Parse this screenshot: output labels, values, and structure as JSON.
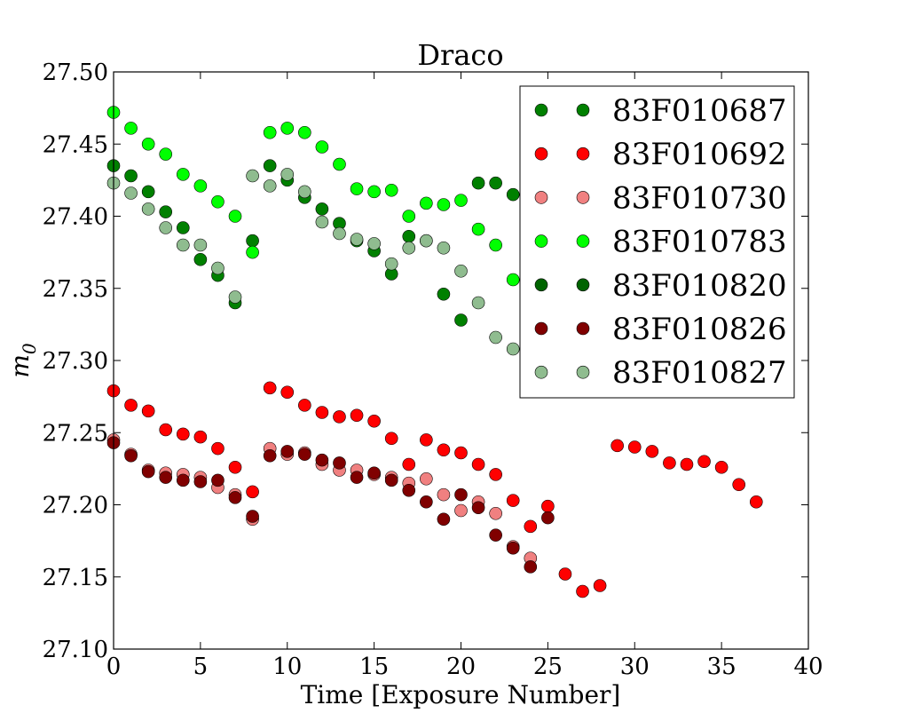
{
  "chart_data": {
    "type": "scatter",
    "title": "Draco",
    "xlabel": "Time [Exposure Number]",
    "ylabel_base": "m",
    "ylabel_sub": "0",
    "xlim": [
      0,
      40
    ],
    "ylim": [
      27.1,
      27.5
    ],
    "xticks": [
      0,
      5,
      10,
      15,
      20,
      25,
      30,
      35,
      40
    ],
    "xtick_labels": [
      "0",
      "5",
      "10",
      "15",
      "20",
      "25",
      "30",
      "35",
      "40"
    ],
    "yticks": [
      27.1,
      27.15,
      27.2,
      27.25,
      27.3,
      27.35,
      27.4,
      27.45,
      27.5
    ],
    "ytick_labels": [
      "27.10",
      "27.15",
      "27.20",
      "27.25",
      "27.30",
      "27.35",
      "27.40",
      "27.45",
      "27.50"
    ],
    "grid": false,
    "legend_position": "top-right",
    "series": [
      {
        "name": "83F010687",
        "color": "#008000",
        "points": [
          [
            0,
            27.435
          ],
          [
            1,
            27.428
          ],
          [
            2,
            27.417
          ],
          [
            3,
            27.403
          ],
          [
            4,
            27.392
          ],
          [
            5,
            27.37
          ],
          [
            6,
            27.359
          ],
          [
            7,
            27.34
          ],
          [
            8,
            27.383
          ],
          [
            9,
            27.435
          ],
          [
            10,
            27.425
          ],
          [
            11,
            27.413
          ],
          [
            12,
            27.405
          ],
          [
            13,
            27.395
          ],
          [
            14,
            27.383
          ],
          [
            15,
            27.376
          ],
          [
            16,
            27.36
          ],
          [
            17,
            27.386
          ],
          [
            18,
            27.383
          ],
          [
            19,
            27.346
          ],
          [
            20,
            27.328
          ],
          [
            21,
            27.423
          ],
          [
            22,
            27.423
          ],
          [
            23,
            27.415
          ]
        ]
      },
      {
        "name": "83F010692",
        "color": "#ff0000",
        "points": [
          [
            0,
            27.279
          ],
          [
            1,
            27.269
          ],
          [
            2,
            27.265
          ],
          [
            3,
            27.252
          ],
          [
            4,
            27.249
          ],
          [
            5,
            27.247
          ],
          [
            6,
            27.239
          ],
          [
            7,
            27.226
          ],
          [
            8,
            27.209
          ],
          [
            9,
            27.281
          ],
          [
            10,
            27.278
          ],
          [
            11,
            27.269
          ],
          [
            12,
            27.264
          ],
          [
            13,
            27.261
          ],
          [
            14,
            27.262
          ],
          [
            15,
            27.258
          ],
          [
            16,
            27.246
          ],
          [
            17,
            27.228
          ],
          [
            18,
            27.245
          ],
          [
            19,
            27.238
          ],
          [
            20,
            27.236
          ],
          [
            21,
            27.228
          ],
          [
            22,
            27.221
          ],
          [
            23,
            27.203
          ],
          [
            24,
            27.185
          ],
          [
            25,
            27.199
          ],
          [
            26,
            27.152
          ],
          [
            27,
            27.14
          ],
          [
            28,
            27.144
          ],
          [
            29,
            27.241
          ],
          [
            30,
            27.24
          ],
          [
            31,
            27.237
          ],
          [
            32,
            27.229
          ],
          [
            33,
            27.228
          ],
          [
            34,
            27.23
          ],
          [
            35,
            27.226
          ],
          [
            36,
            27.214
          ],
          [
            37,
            27.202
          ]
        ]
      },
      {
        "name": "83F010730",
        "color": "#f08080",
        "points": [
          [
            0,
            27.245
          ],
          [
            1,
            27.235
          ],
          [
            2,
            27.224
          ],
          [
            3,
            27.222
          ],
          [
            4,
            27.221
          ],
          [
            5,
            27.219
          ],
          [
            6,
            27.212
          ],
          [
            7,
            27.207
          ],
          [
            8,
            27.19
          ],
          [
            9,
            27.239
          ],
          [
            10,
            27.235
          ],
          [
            11,
            27.236
          ],
          [
            12,
            27.228
          ],
          [
            13,
            27.224
          ],
          [
            14,
            27.224
          ],
          [
            15,
            27.221
          ],
          [
            16,
            27.219
          ],
          [
            17,
            27.215
          ],
          [
            18,
            27.218
          ],
          [
            19,
            27.207
          ],
          [
            20,
            27.196
          ],
          [
            21,
            27.202
          ],
          [
            22,
            27.194
          ],
          [
            23,
            27.171
          ],
          [
            24,
            27.163
          ]
        ]
      },
      {
        "name": "83F010783",
        "color": "#00ff00",
        "points": [
          [
            0,
            27.472
          ],
          [
            1,
            27.461
          ],
          [
            2,
            27.45
          ],
          [
            3,
            27.443
          ],
          [
            4,
            27.429
          ],
          [
            5,
            27.421
          ],
          [
            6,
            27.41
          ],
          [
            7,
            27.4
          ],
          [
            8,
            27.375
          ],
          [
            9,
            27.458
          ],
          [
            10,
            27.461
          ],
          [
            11,
            27.458
          ],
          [
            12,
            27.448
          ],
          [
            13,
            27.436
          ],
          [
            14,
            27.419
          ],
          [
            15,
            27.417
          ],
          [
            16,
            27.418
          ],
          [
            17,
            27.4
          ],
          [
            18,
            27.409
          ],
          [
            19,
            27.408
          ],
          [
            20,
            27.411
          ],
          [
            21,
            27.391
          ],
          [
            22,
            27.38
          ],
          [
            23,
            27.356
          ]
        ]
      },
      {
        "name": "83F010820",
        "color": "#006400",
        "points": []
      },
      {
        "name": "83F010826",
        "color": "#800000",
        "points": [
          [
            0,
            27.243
          ],
          [
            1,
            27.234
          ],
          [
            2,
            27.223
          ],
          [
            3,
            27.219
          ],
          [
            4,
            27.217
          ],
          [
            5,
            27.216
          ],
          [
            6,
            27.217
          ],
          [
            7,
            27.205
          ],
          [
            8,
            27.192
          ],
          [
            9,
            27.234
          ],
          [
            10,
            27.237
          ],
          [
            11,
            27.235
          ],
          [
            12,
            27.231
          ],
          [
            13,
            27.229
          ],
          [
            14,
            27.219
          ],
          [
            15,
            27.222
          ],
          [
            16,
            27.217
          ],
          [
            17,
            27.21
          ],
          [
            18,
            27.202
          ],
          [
            19,
            27.19
          ],
          [
            20,
            27.207
          ],
          [
            21,
            27.198
          ],
          [
            22,
            27.179
          ],
          [
            23,
            27.17
          ],
          [
            24,
            27.157
          ],
          [
            25,
            27.191
          ]
        ]
      },
      {
        "name": "83F010827",
        "color": "#8fbc8f",
        "points": [
          [
            0,
            27.423
          ],
          [
            1,
            27.416
          ],
          [
            2,
            27.405
          ],
          [
            3,
            27.392
          ],
          [
            4,
            27.38
          ],
          [
            5,
            27.38
          ],
          [
            6,
            27.364
          ],
          [
            7,
            27.344
          ],
          [
            8,
            27.428
          ],
          [
            9,
            27.421
          ],
          [
            10,
            27.429
          ],
          [
            11,
            27.417
          ],
          [
            12,
            27.396
          ],
          [
            13,
            27.388
          ],
          [
            14,
            27.384
          ],
          [
            15,
            27.381
          ],
          [
            16,
            27.367
          ],
          [
            17,
            27.378
          ],
          [
            18,
            27.383
          ],
          [
            19,
            27.378
          ],
          [
            20,
            27.362
          ],
          [
            21,
            27.34
          ],
          [
            22,
            27.316
          ],
          [
            23,
            27.308
          ]
        ]
      }
    ]
  }
}
